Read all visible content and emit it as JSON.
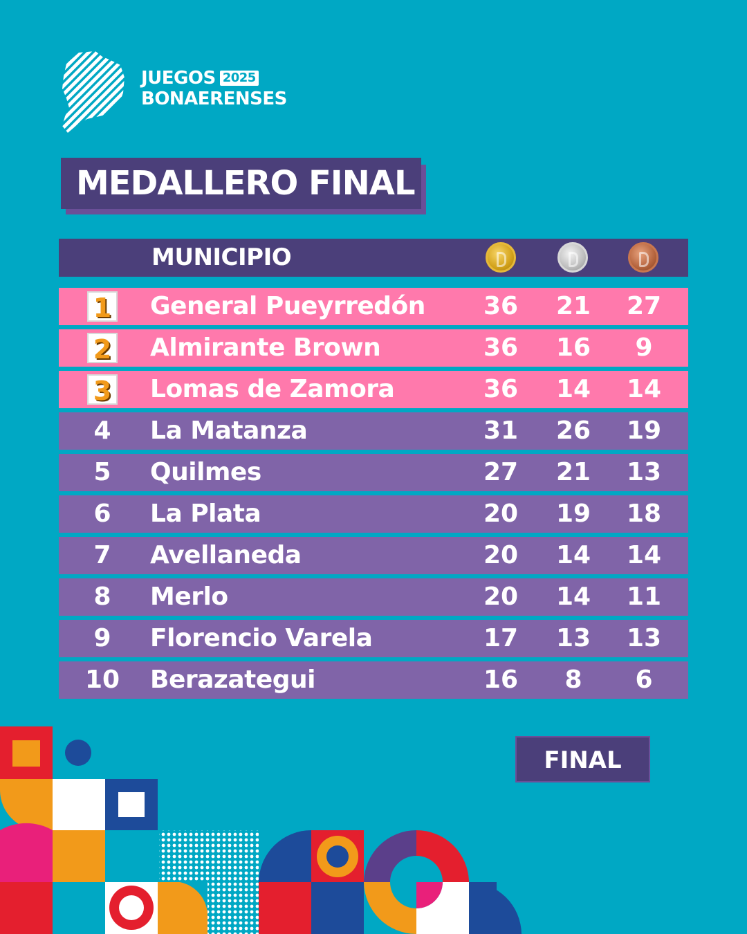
{
  "logo": {
    "line1": "JUEGOS",
    "year": "2025",
    "line2": "BONAERENSES"
  },
  "title": "MEDALLERO FINAL",
  "table": {
    "header": {
      "municipio": "MUNICIPIO",
      "medals": [
        "gold-medal-icon",
        "silver-medal-icon",
        "bronze-medal-icon"
      ]
    },
    "rows": [
      {
        "rank": "1",
        "name": "General Pueyrredón",
        "gold": "36",
        "silver": "21",
        "bronze": "27"
      },
      {
        "rank": "2",
        "name": "Almirante Brown",
        "gold": "36",
        "silver": "16",
        "bronze": "9"
      },
      {
        "rank": "3",
        "name": "Lomas de Zamora",
        "gold": "36",
        "silver": "14",
        "bronze": "14"
      },
      {
        "rank": "4",
        "name": "La Matanza",
        "gold": "31",
        "silver": "26",
        "bronze": "19"
      },
      {
        "rank": "5",
        "name": "Quilmes",
        "gold": "27",
        "silver": "21",
        "bronze": "13"
      },
      {
        "rank": "6",
        "name": "La Plata",
        "gold": "20",
        "silver": "19",
        "bronze": "18"
      },
      {
        "rank": "7",
        "name": "Avellaneda",
        "gold": "20",
        "silver": "14",
        "bronze": "14"
      },
      {
        "rank": "8",
        "name": "Merlo",
        "gold": "20",
        "silver": "14",
        "bronze": "11"
      },
      {
        "rank": "9",
        "name": "Florencio Varela",
        "gold": "17",
        "silver": "13",
        "bronze": "13"
      },
      {
        "rank": "10",
        "name": "Berazategui",
        "gold": "16",
        "silver": "8",
        "bronze": "6"
      }
    ]
  },
  "footer": {
    "final_label": "FINAL"
  },
  "colors": {
    "background": "#00A8C4",
    "header": "#4B3F7A",
    "podium_row": "#FF79AC",
    "row": "#8064A8",
    "rank_number": "#F29A1A"
  }
}
